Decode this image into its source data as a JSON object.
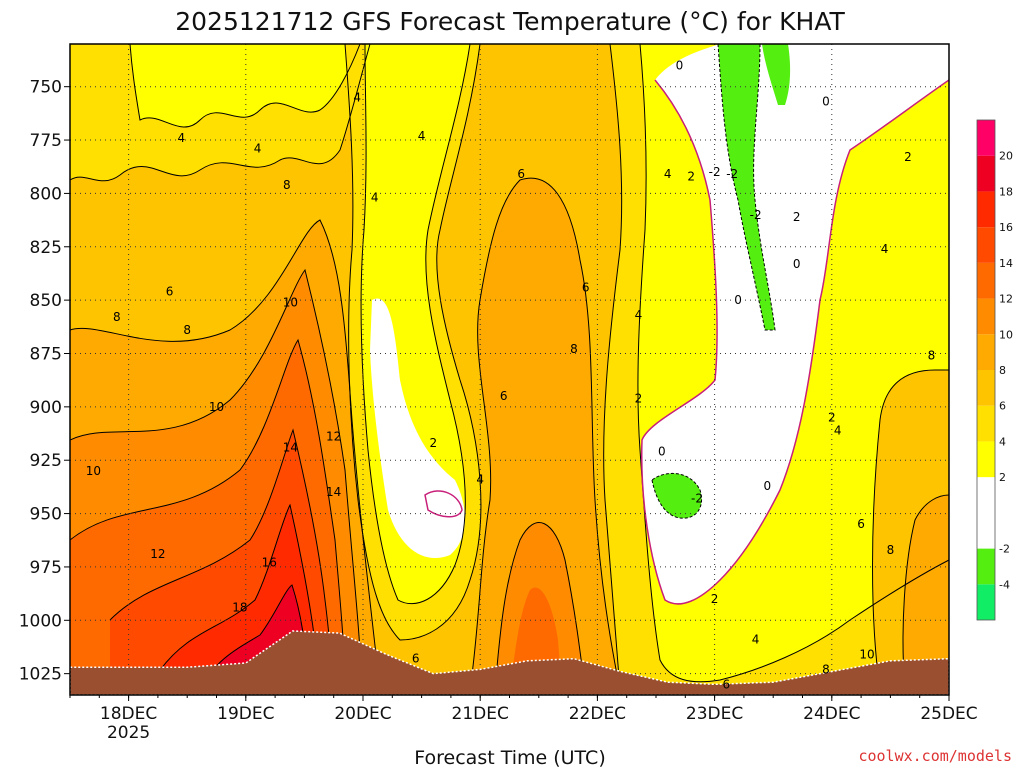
{
  "chart_data": {
    "type": "heatmap",
    "title": "2025121712 GFS Forecast Temperature (°C) for KHAT",
    "xlabel": "Forecast Time (UTC)",
    "ylabel": "",
    "credit": "coolwx.com/models",
    "x_range_days": [
      17.5,
      25.0
    ],
    "y_range_hpa": [
      1035,
      730
    ],
    "x_ticks": [
      {
        "day": 18,
        "label": "18DEC",
        "sub": "2025"
      },
      {
        "day": 19,
        "label": "19DEC",
        "sub": ""
      },
      {
        "day": 20,
        "label": "20DEC",
        "sub": ""
      },
      {
        "day": 21,
        "label": "21DEC",
        "sub": ""
      },
      {
        "day": 22,
        "label": "22DEC",
        "sub": ""
      },
      {
        "day": 23,
        "label": "23DEC",
        "sub": ""
      },
      {
        "day": 24,
        "label": "24DEC",
        "sub": ""
      },
      {
        "day": 25,
        "label": "25DEC",
        "sub": ""
      }
    ],
    "y_ticks": [
      750,
      775,
      800,
      825,
      850,
      875,
      900,
      925,
      950,
      975,
      1000,
      1025
    ],
    "grid": true,
    "colorbar": {
      "position": "right",
      "bins": [
        {
          "min": -6,
          "max": -4,
          "color": "#11ee66"
        },
        {
          "min": -4,
          "max": -2,
          "color": "#55ee11"
        },
        {
          "min": -2,
          "max": 2,
          "color": "#ffffff"
        },
        {
          "min": 2,
          "max": 4,
          "color": "#ffff00"
        },
        {
          "min": 4,
          "max": 6,
          "color": "#ffe000"
        },
        {
          "min": 6,
          "max": 8,
          "color": "#ffc400"
        },
        {
          "min": 8,
          "max": 10,
          "color": "#ffaa00"
        },
        {
          "min": 10,
          "max": 12,
          "color": "#ff8c00"
        },
        {
          "min": 12,
          "max": 14,
          "color": "#ff6a00"
        },
        {
          "min": 14,
          "max": 16,
          "color": "#ff4a00"
        },
        {
          "min": 16,
          "max": 18,
          "color": "#ff2a00"
        },
        {
          "min": 18,
          "max": 20,
          "color": "#ee0022"
        },
        {
          "min": 20,
          "max": 22,
          "color": "#ff0066"
        }
      ],
      "tick_labels": [
        "20",
        "18",
        "16",
        "14",
        "12",
        "10",
        "8",
        "6",
        "4",
        "2",
        "-2",
        "-4"
      ]
    },
    "surface_pressure": [
      {
        "day": 17.5,
        "hpa": 1022
      },
      {
        "day": 18.5,
        "hpa": 1022
      },
      {
        "day": 19.0,
        "hpa": 1020
      },
      {
        "day": 19.4,
        "hpa": 1005
      },
      {
        "day": 19.8,
        "hpa": 1006
      },
      {
        "day": 20.2,
        "hpa": 1016
      },
      {
        "day": 20.6,
        "hpa": 1025
      },
      {
        "day": 21.0,
        "hpa": 1023
      },
      {
        "day": 21.4,
        "hpa": 1019
      },
      {
        "day": 21.8,
        "hpa": 1018
      },
      {
        "day": 22.2,
        "hpa": 1024
      },
      {
        "day": 22.6,
        "hpa": 1029
      },
      {
        "day": 23.0,
        "hpa": 1030
      },
      {
        "day": 23.5,
        "hpa": 1029
      },
      {
        "day": 24.0,
        "hpa": 1024
      },
      {
        "day": 24.5,
        "hpa": 1019
      },
      {
        "day": 25.0,
        "hpa": 1018
      }
    ],
    "contour_labels": [
      {
        "day": 18.45,
        "hpa": 774,
        "text": "4"
      },
      {
        "day": 19.1,
        "hpa": 779,
        "text": "4"
      },
      {
        "day": 19.95,
        "hpa": 755,
        "text": "4"
      },
      {
        "day": 20.5,
        "hpa": 773,
        "text": "4"
      },
      {
        "day": 20.1,
        "hpa": 802,
        "text": "4"
      },
      {
        "day": 19.35,
        "hpa": 796,
        "text": "8"
      },
      {
        "day": 18.35,
        "hpa": 846,
        "text": "6"
      },
      {
        "day": 17.9,
        "hpa": 858,
        "text": "8"
      },
      {
        "day": 18.5,
        "hpa": 864,
        "text": "8"
      },
      {
        "day": 19.38,
        "hpa": 851,
        "text": "10"
      },
      {
        "day": 18.75,
        "hpa": 900,
        "text": "10"
      },
      {
        "day": 17.7,
        "hpa": 930,
        "text": "10"
      },
      {
        "day": 19.38,
        "hpa": 919,
        "text": "14"
      },
      {
        "day": 19.75,
        "hpa": 914,
        "text": "12"
      },
      {
        "day": 19.75,
        "hpa": 940,
        "text": "14"
      },
      {
        "day": 18.25,
        "hpa": 969,
        "text": "12"
      },
      {
        "day": 19.2,
        "hpa": 973,
        "text": "16"
      },
      {
        "day": 18.95,
        "hpa": 994,
        "text": "18"
      },
      {
        "day": 20.6,
        "hpa": 917,
        "text": "2"
      },
      {
        "day": 21.0,
        "hpa": 934,
        "text": "4"
      },
      {
        "day": 21.2,
        "hpa": 895,
        "text": "6"
      },
      {
        "day": 21.35,
        "hpa": 791,
        "text": "6"
      },
      {
        "day": 21.9,
        "hpa": 844,
        "text": "6"
      },
      {
        "day": 21.8,
        "hpa": 873,
        "text": "8"
      },
      {
        "day": 20.45,
        "hpa": 1018,
        "text": "6"
      },
      {
        "day": 22.35,
        "hpa": 857,
        "text": "4"
      },
      {
        "day": 22.35,
        "hpa": 896,
        "text": "2"
      },
      {
        "day": 22.6,
        "hpa": 791,
        "text": "4"
      },
      {
        "day": 22.8,
        "hpa": 792,
        "text": "2"
      },
      {
        "day": 23.0,
        "hpa": 790,
        "text": "-2"
      },
      {
        "day": 23.15,
        "hpa": 791,
        "text": "-2"
      },
      {
        "day": 23.35,
        "hpa": 810,
        "text": "-2"
      },
      {
        "day": 22.7,
        "hpa": 740,
        "text": "0"
      },
      {
        "day": 23.95,
        "hpa": 757,
        "text": "0"
      },
      {
        "day": 24.65,
        "hpa": 783,
        "text": "2"
      },
      {
        "day": 23.7,
        "hpa": 811,
        "text": "2"
      },
      {
        "day": 24.45,
        "hpa": 826,
        "text": "4"
      },
      {
        "day": 23.7,
        "hpa": 833,
        "text": "0"
      },
      {
        "day": 23.2,
        "hpa": 850,
        "text": "0"
      },
      {
        "day": 22.55,
        "hpa": 921,
        "text": "0"
      },
      {
        "day": 22.85,
        "hpa": 943,
        "text": "-2"
      },
      {
        "day": 23.45,
        "hpa": 937,
        "text": "0"
      },
      {
        "day": 23.0,
        "hpa": 990,
        "text": "2"
      },
      {
        "day": 23.35,
        "hpa": 1009,
        "text": "4"
      },
      {
        "day": 24.0,
        "hpa": 905,
        "text": "2"
      },
      {
        "day": 24.05,
        "hpa": 911,
        "text": "4"
      },
      {
        "day": 24.25,
        "hpa": 955,
        "text": "6"
      },
      {
        "day": 24.5,
        "hpa": 967,
        "text": "8"
      },
      {
        "day": 24.85,
        "hpa": 876,
        "text": "8"
      },
      {
        "day": 24.3,
        "hpa": 1016,
        "text": "10"
      },
      {
        "day": 23.95,
        "hpa": 1023,
        "text": "8"
      },
      {
        "day": 23.1,
        "hpa": 1030,
        "text": "6"
      }
    ]
  }
}
